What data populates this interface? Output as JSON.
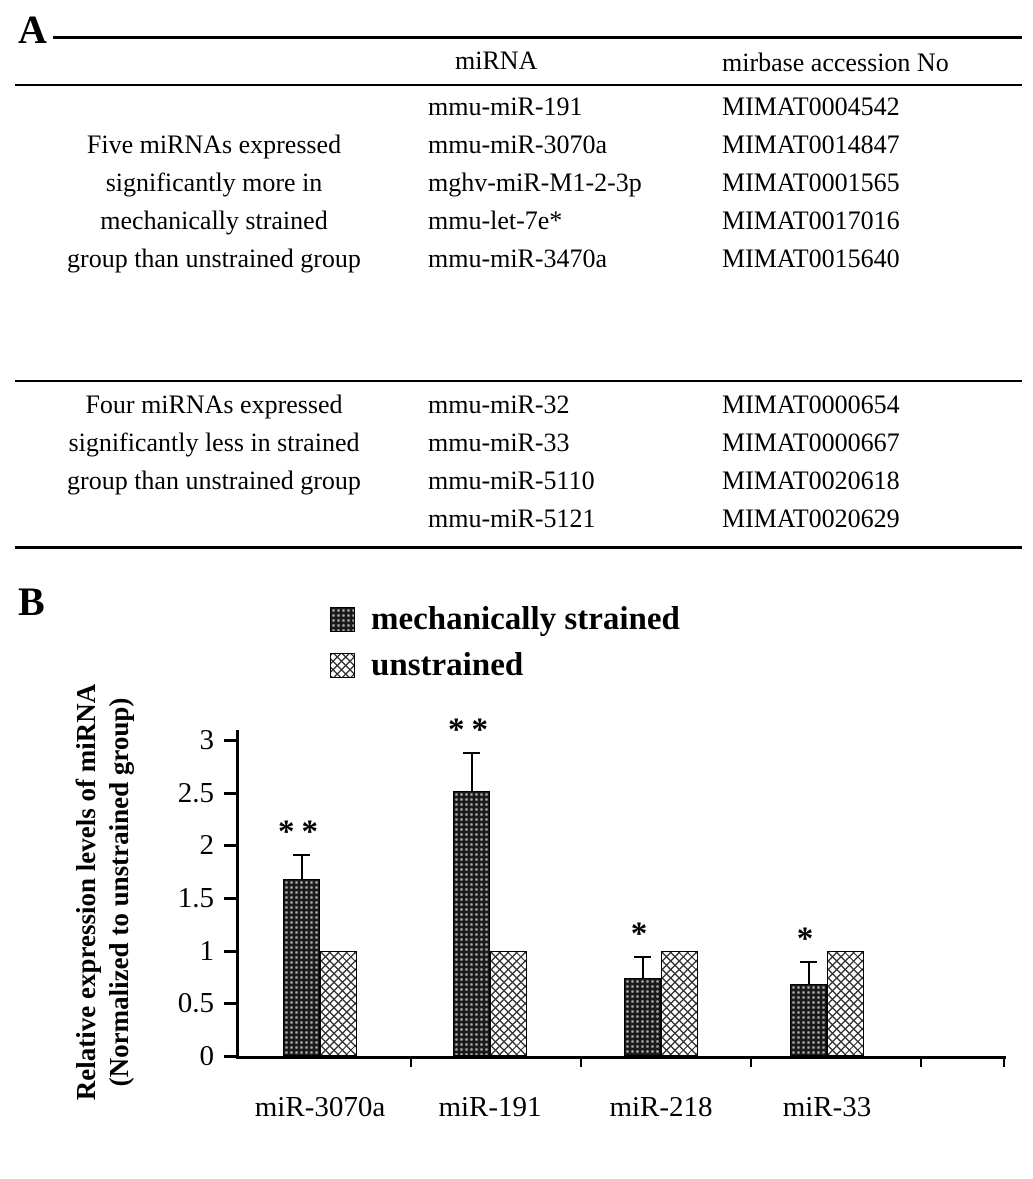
{
  "panels": {
    "a_label": "A",
    "b_label": "B"
  },
  "table": {
    "headers": {
      "mirna": "miRNA",
      "accession": "mirbase accession No"
    },
    "groups": [
      {
        "description": "Five miRNAs expressed significantly more in mechanically strained group than unstrained group",
        "rows": [
          {
            "desc": "",
            "mirna": "mmu-miR-191",
            "accession": "MIMAT0004542"
          },
          {
            "desc": "Five miRNAs expressed",
            "mirna": "mmu-miR-3070a",
            "accession": "MIMAT0014847"
          },
          {
            "desc": "significantly more in",
            "mirna": "mghv-miR-M1-2-3p",
            "accession": "MIMAT0001565"
          },
          {
            "desc": "mechanically strained",
            "mirna": "mmu-let-7e*",
            "accession": "MIMAT0017016"
          },
          {
            "desc": "group than unstrained group",
            "mirna": "mmu-miR-3470a",
            "accession": "MIMAT0015640"
          }
        ]
      },
      {
        "description": "Four miRNAs expressed significantly less in strained group than unstrained group",
        "rows": [
          {
            "desc": "Four miRNAs expressed",
            "mirna": "mmu-miR-32",
            "accession": "MIMAT0000654"
          },
          {
            "desc": "significantly less in strained",
            "mirna": "mmu-miR-33",
            "accession": "MIMAT0000667"
          },
          {
            "desc": "group than unstrained group",
            "mirna": "mmu-miR-5110",
            "accession": "MIMAT0020618"
          },
          {
            "desc": "",
            "mirna": "mmu-miR-5121",
            "accession": "MIMAT0020629"
          }
        ]
      }
    ]
  },
  "chart_data": {
    "type": "bar",
    "title": "",
    "categories": [
      "miR-3070a",
      "miR-191",
      "miR-218",
      "miR-33"
    ],
    "series": [
      {
        "name": "mechanically strained",
        "values": [
          1.68,
          2.52,
          0.74,
          0.68
        ],
        "errors": [
          0.24,
          0.37,
          0.21,
          0.22
        ],
        "significance": [
          "**",
          "**",
          "*",
          "*"
        ]
      },
      {
        "name": "unstrained",
        "values": [
          1,
          1,
          1,
          1
        ],
        "errors": [
          0,
          0,
          0,
          0
        ],
        "significance": [
          "",
          "",
          "",
          ""
        ]
      }
    ],
    "ylabel_line1": "Relative expression levels of miRNA",
    "ylabel_line2": "(Normalized to unstrained group)",
    "yticks": [
      0,
      0.5,
      1,
      1.5,
      2,
      2.5,
      3
    ],
    "ylim": [
      0,
      3
    ],
    "grid": false,
    "legend_position": "top",
    "colors": {
      "strained_fill": "#1a1a1a",
      "unstrained_fill": "#ffffff",
      "outline": "#000000"
    }
  }
}
